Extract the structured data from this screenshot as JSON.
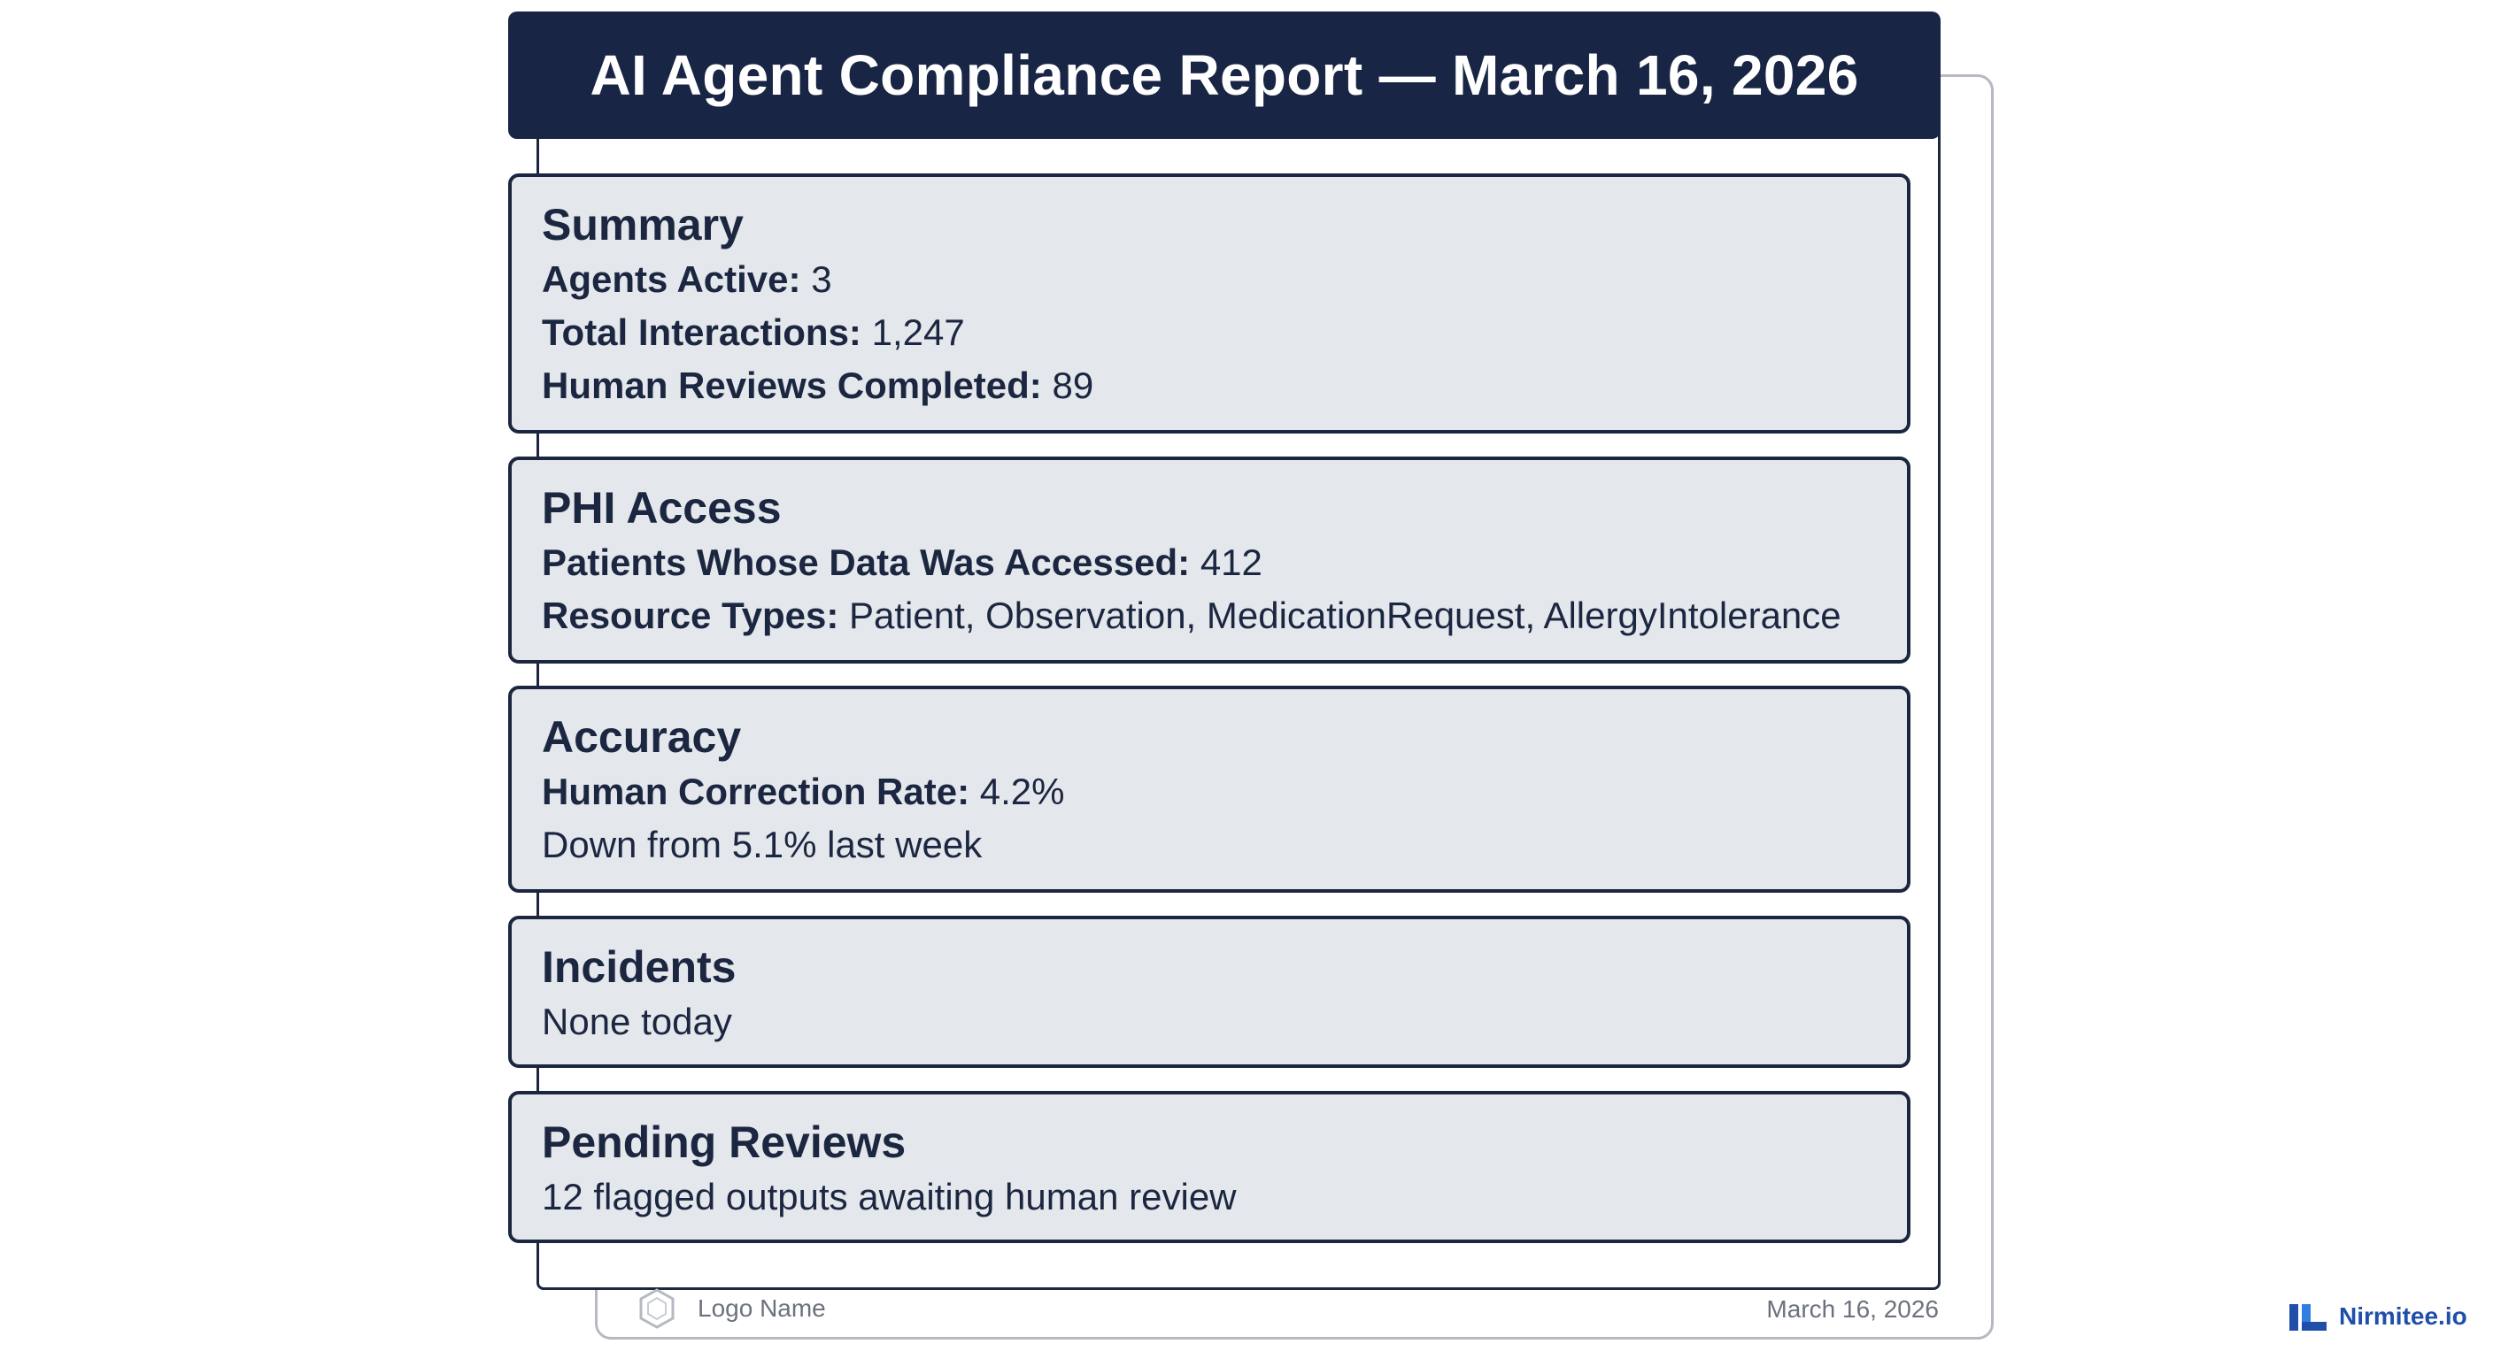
{
  "report": {
    "title": "AI Agent Compliance Report — March 16, 2026"
  },
  "sections": {
    "summary": {
      "heading": "Summary",
      "agents_active_label": "Agents Active:",
      "agents_active_value": "3",
      "total_interactions_label": "Total Interactions:",
      "total_interactions_value": "1,247",
      "human_reviews_label": "Human Reviews Completed:",
      "human_reviews_value": "89"
    },
    "phi_access": {
      "heading": "PHI Access",
      "patients_label": "Patients Whose Data Was Accessed:",
      "patients_value": "412",
      "resource_types_label": "Resource Types:",
      "resource_types_value": "Patient, Observation, MedicationRequest, AllergyIntolerance"
    },
    "accuracy": {
      "heading": "Accuracy",
      "correction_rate_label": "Human Correction Rate:",
      "correction_rate_value": "4.2%",
      "trend_text": "Down from 5.1% last week"
    },
    "incidents": {
      "heading": "Incidents",
      "text": "None today"
    },
    "pending_reviews": {
      "heading": "Pending Reviews",
      "text": "12 flagged outputs awaiting human review"
    }
  },
  "footer": {
    "logo_text": "Logo Name",
    "logo_icon": "hexagon-icon",
    "date": "March 16, 2026"
  },
  "brand": {
    "name": "Nirmitee.io",
    "icon": "nirmitee-logo-icon",
    "color": "#1f4fa8"
  },
  "colors": {
    "title_bar": "#182544",
    "card_background": "#e4e7eb",
    "card_border": "#1b2640",
    "footer_text": "#6c727d"
  }
}
